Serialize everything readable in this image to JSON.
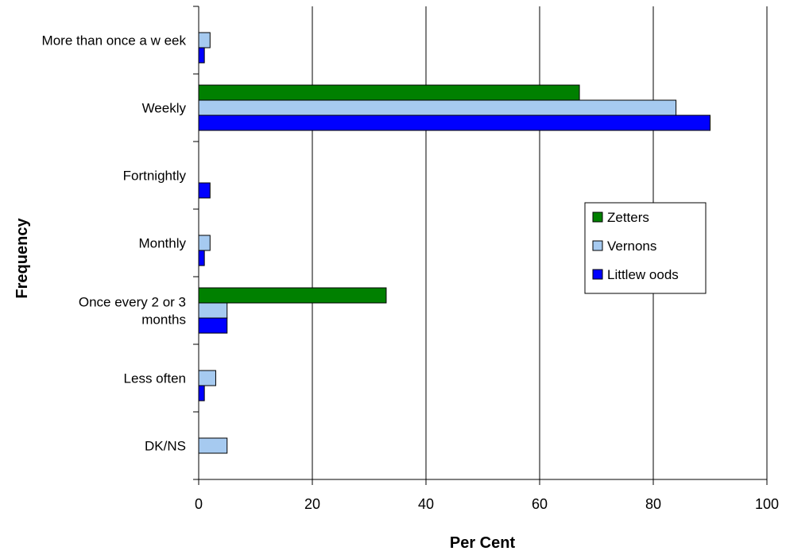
{
  "chart_data": {
    "type": "bar",
    "orientation": "horizontal",
    "xlabel": "Per Cent",
    "ylabel": "Frequency",
    "xlim": [
      0,
      100
    ],
    "xticks": [
      0,
      20,
      40,
      60,
      80,
      100
    ],
    "grid": "vertical",
    "legend_position": "right",
    "categories": [
      [
        "More than once a w eek"
      ],
      [
        "Weekly"
      ],
      [
        "Fortnightly"
      ],
      [
        "Monthly"
      ],
      [
        "Once every 2 or 3",
        "months"
      ],
      [
        "Less often"
      ],
      [
        "DK/NS"
      ]
    ],
    "series": [
      {
        "name": "Zetters",
        "color": "#008000",
        "values": [
          0,
          67,
          0,
          0,
          33,
          0,
          0
        ]
      },
      {
        "name": "Vernons",
        "color": "#a6caf0",
        "values": [
          2,
          84,
          0,
          2,
          5,
          3,
          5
        ]
      },
      {
        "name": "Littlew oods",
        "color": "#0000ff",
        "values": [
          1,
          90,
          2,
          1,
          5,
          1,
          0
        ]
      }
    ]
  }
}
